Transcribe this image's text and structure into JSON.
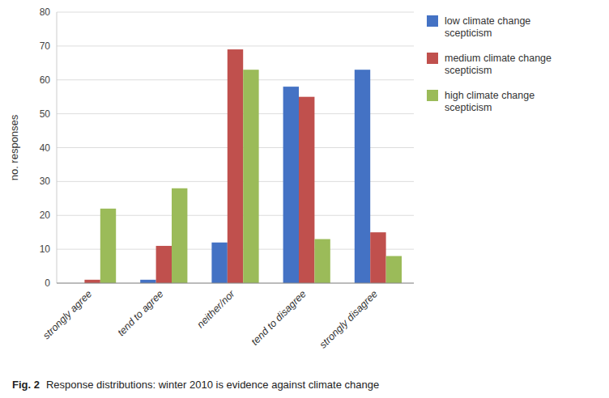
{
  "chart_data": {
    "type": "bar",
    "categories": [
      "strongly agree",
      "tend to agree",
      "neither/nor",
      "tend to disagree",
      "strongly disagree"
    ],
    "series": [
      {
        "name": "low climate change\nscepticism",
        "color": "#4472C4",
        "values": [
          0,
          1,
          12,
          58,
          63
        ]
      },
      {
        "name": "medium climate change\nscepticism",
        "color": "#C0504D",
        "values": [
          1,
          11,
          69,
          55,
          15
        ]
      },
      {
        "name": "high climate change\nscepticism",
        "color": "#9BBB59",
        "values": [
          22,
          28,
          63,
          13,
          8
        ]
      }
    ],
    "y_label": "no. responses",
    "ylim": [
      0,
      80
    ],
    "yticks": [
      0,
      10,
      20,
      30,
      40,
      50,
      60,
      70,
      80
    ],
    "grid": true,
    "legend": "right",
    "annotations": [
      "Fig. 2",
      "Response distributions: winter 2010 is evidence against climate change"
    ]
  }
}
